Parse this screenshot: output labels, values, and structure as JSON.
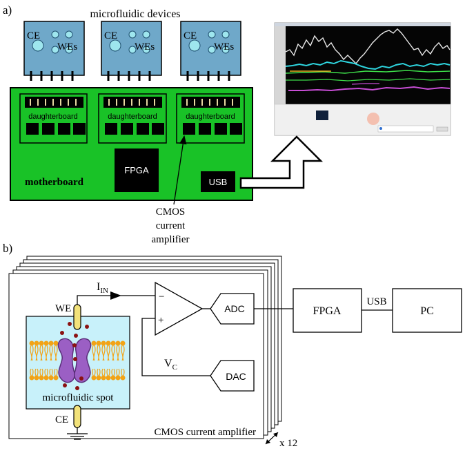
{
  "panel_a": {
    "label": "a)",
    "title": "microfluidic devices",
    "device_ce": "CE",
    "device_wes": "WEs",
    "daughterboard": "daughterboard",
    "fpga": "FPGA",
    "motherboard": "motherboard",
    "usb": "USB",
    "callout_line1": "CMOS",
    "callout_line2": "current",
    "callout_line3": "amplifier"
  },
  "panel_b": {
    "label": "b)",
    "i_in_main": "I",
    "i_in_sub": "IN",
    "we": "WE",
    "ce": "CE",
    "minus": "−",
    "plus": "+",
    "adc": "ADC",
    "dac": "DAC",
    "vc_main": "V",
    "vc_sub": "C",
    "spot": "microfluidic spot",
    "amp_label": "CMOS current amplifier",
    "stack_count": "x 12",
    "fpga": "FPGA",
    "usb": "USB",
    "pc": "PC"
  },
  "colors": {
    "device_blue": "#6fa8c9",
    "board_green": "#19c227",
    "spot_cyan": "#c8f1fa",
    "protein_purple": "#9b5fc4",
    "lipid_orange": "#f2a316",
    "electrode_yellow": "#f2e27a"
  }
}
